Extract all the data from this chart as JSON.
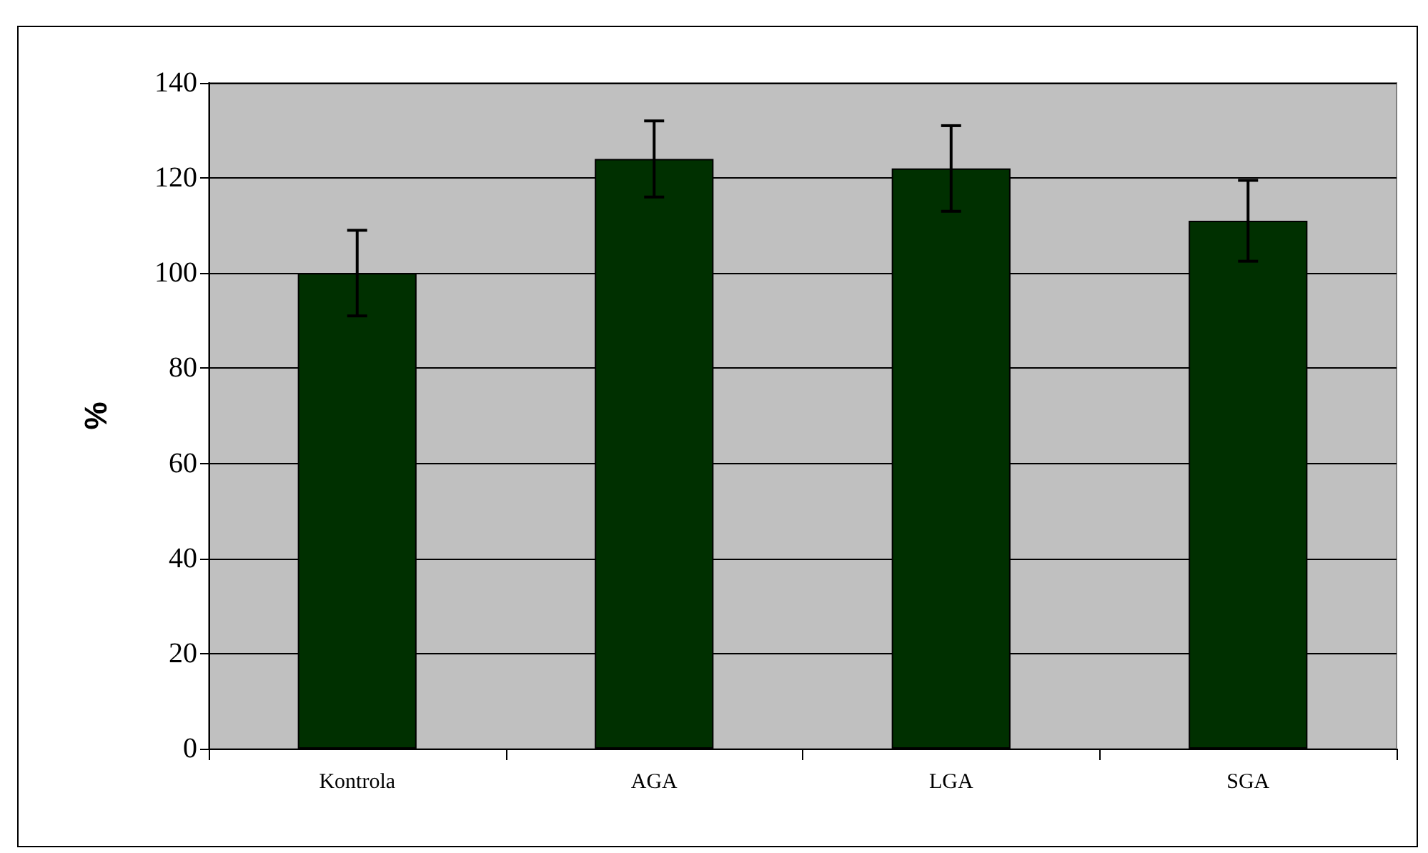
{
  "chart_data": {
    "type": "bar",
    "ylabel": "%",
    "categories": [
      "Kontrola",
      "AGA",
      "LGA",
      "SGA"
    ],
    "values": [
      100,
      124,
      122,
      111
    ],
    "errors": [
      9,
      8,
      9,
      8.5
    ],
    "color": "#003000",
    "ylim": [
      0,
      140
    ],
    "yticks": [
      0,
      20,
      40,
      60,
      80,
      100,
      120,
      140
    ],
    "grid": "y"
  }
}
